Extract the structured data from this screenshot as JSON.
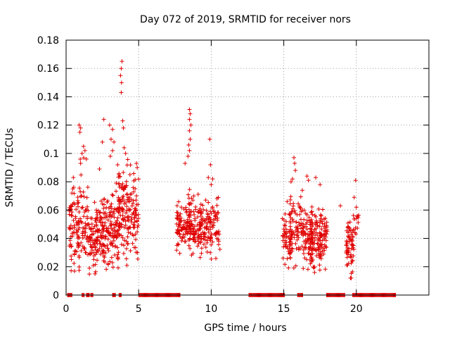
{
  "chart_data": {
    "type": "scatter",
    "title": "Day 072 of 2019, SRMTID for receiver nors",
    "xlabel": "GPS time / hours",
    "ylabel": "SRMTID / TECUs",
    "xlim": [
      0,
      25
    ],
    "ylim": [
      0,
      0.18
    ],
    "xticks": [
      0,
      5,
      10,
      15,
      20
    ],
    "xtick_labels": [
      "0",
      "5",
      "10",
      "15",
      "20"
    ],
    "yticks": [
      0,
      0.02,
      0.04,
      0.06,
      0.08,
      0.1,
      0.12,
      0.14,
      0.16,
      0.18
    ],
    "ytick_labels": [
      "0",
      "0.02",
      "0.04",
      "0.06",
      "0.08",
      "0.1",
      "0.12",
      "0.14",
      "0.16",
      "0.18"
    ],
    "grid": true,
    "marker": "+",
    "color": "#e00000",
    "zero_segments": [
      [
        0.1,
        0.4
      ],
      [
        1.1,
        1.25
      ],
      [
        1.4,
        1.6
      ],
      [
        1.7,
        1.85
      ],
      [
        3.2,
        3.4
      ],
      [
        3.65,
        3.8
      ],
      [
        5.0,
        7.85
      ],
      [
        12.6,
        15.05
      ],
      [
        15.95,
        16.3
      ],
      [
        17.95,
        19.2
      ],
      [
        19.75,
        22.7
      ]
    ],
    "clusters": [
      {
        "x_range": [
          0.2,
          0.9
        ],
        "y_center": 0.045,
        "y_spread": 0.018,
        "count": 70
      },
      {
        "x_range": [
          0.8,
          1.5
        ],
        "y_center": 0.05,
        "y_spread": 0.02,
        "count": 60
      },
      {
        "x_range": [
          1.5,
          2.2
        ],
        "y_center": 0.04,
        "y_spread": 0.016,
        "count": 80
      },
      {
        "x_range": [
          2.2,
          3.0
        ],
        "y_center": 0.045,
        "y_spread": 0.02,
        "count": 90
      },
      {
        "x_range": [
          3.0,
          3.7
        ],
        "y_center": 0.045,
        "y_spread": 0.022,
        "count": 80
      },
      {
        "x_range": [
          3.6,
          4.3
        ],
        "y_center": 0.06,
        "y_spread": 0.022,
        "count": 90
      },
      {
        "x_range": [
          4.3,
          5.0
        ],
        "y_center": 0.055,
        "y_spread": 0.018,
        "count": 70
      },
      {
        "x_range": [
          7.6,
          8.6
        ],
        "y_center": 0.048,
        "y_spread": 0.012,
        "count": 90
      },
      {
        "x_range": [
          8.4,
          9.3
        ],
        "y_center": 0.05,
        "y_spread": 0.016,
        "count": 80
      },
      {
        "x_range": [
          9.2,
          10.0
        ],
        "y_center": 0.048,
        "y_spread": 0.014,
        "count": 70
      },
      {
        "x_range": [
          9.9,
          10.6
        ],
        "y_center": 0.05,
        "y_spread": 0.015,
        "count": 50
      },
      {
        "x_range": [
          14.9,
          15.6
        ],
        "y_center": 0.04,
        "y_spread": 0.013,
        "count": 60
      },
      {
        "x_range": [
          15.4,
          16.3
        ],
        "y_center": 0.05,
        "y_spread": 0.016,
        "count": 70
      },
      {
        "x_range": [
          16.3,
          17.0
        ],
        "y_center": 0.042,
        "y_spread": 0.014,
        "count": 70
      },
      {
        "x_range": [
          16.8,
          17.6
        ],
        "y_center": 0.035,
        "y_spread": 0.014,
        "count": 80
      },
      {
        "x_range": [
          17.4,
          18.0
        ],
        "y_center": 0.04,
        "y_spread": 0.013,
        "count": 50
      },
      {
        "x_range": [
          19.3,
          19.8
        ],
        "y_center": 0.034,
        "y_spread": 0.012,
        "count": 60
      },
      {
        "x_range": [
          19.8,
          20.3
        ],
        "y_center": 0.052,
        "y_spread": 0.01,
        "count": 15
      }
    ],
    "outliers": [
      [
        0.5,
        0.083
      ],
      [
        0.4,
        0.072
      ],
      [
        0.9,
        0.12
      ],
      [
        1.0,
        0.118
      ],
      [
        0.95,
        0.115
      ],
      [
        1.1,
        0.1
      ],
      [
        1.2,
        0.105
      ],
      [
        1.3,
        0.102
      ],
      [
        1.4,
        0.096
      ],
      [
        1.0,
        0.093
      ],
      [
        2.6,
        0.124
      ],
      [
        2.5,
        0.108
      ],
      [
        2.3,
        0.089
      ],
      [
        3.0,
        0.12
      ],
      [
        3.2,
        0.117
      ],
      [
        3.1,
        0.11
      ],
      [
        3.3,
        0.108
      ],
      [
        3.2,
        0.102
      ],
      [
        3.05,
        0.098
      ],
      [
        3.85,
        0.165
      ],
      [
        3.8,
        0.16
      ],
      [
        3.75,
        0.155
      ],
      [
        3.82,
        0.15
      ],
      [
        3.8,
        0.143
      ],
      [
        3.9,
        0.123
      ],
      [
        3.95,
        0.118
      ],
      [
        4.0,
        0.104
      ],
      [
        4.1,
        0.1
      ],
      [
        3.55,
        0.092
      ],
      [
        4.85,
        0.093
      ],
      [
        4.9,
        0.09
      ],
      [
        4.4,
        0.085
      ],
      [
        8.5,
        0.131
      ],
      [
        8.55,
        0.128
      ],
      [
        8.5,
        0.124
      ],
      [
        8.6,
        0.12
      ],
      [
        8.5,
        0.116
      ],
      [
        8.55,
        0.11
      ],
      [
        8.45,
        0.106
      ],
      [
        8.5,
        0.102
      ],
      [
        8.4,
        0.098
      ],
      [
        8.2,
        0.093
      ],
      [
        9.9,
        0.11
      ],
      [
        9.95,
        0.092
      ],
      [
        10.1,
        0.082
      ],
      [
        10.0,
        0.078
      ],
      [
        9.8,
        0.083
      ],
      [
        15.7,
        0.097
      ],
      [
        15.75,
        0.093
      ],
      [
        15.8,
        0.088
      ],
      [
        15.6,
        0.082
      ],
      [
        15.5,
        0.08
      ],
      [
        16.6,
        0.084
      ],
      [
        16.7,
        0.081
      ],
      [
        17.2,
        0.083
      ],
      [
        17.5,
        0.078
      ],
      [
        19.95,
        0.081
      ],
      [
        19.85,
        0.069
      ],
      [
        20.0,
        0.062
      ],
      [
        18.9,
        0.063
      ],
      [
        19.6,
        0.012
      ]
    ]
  }
}
